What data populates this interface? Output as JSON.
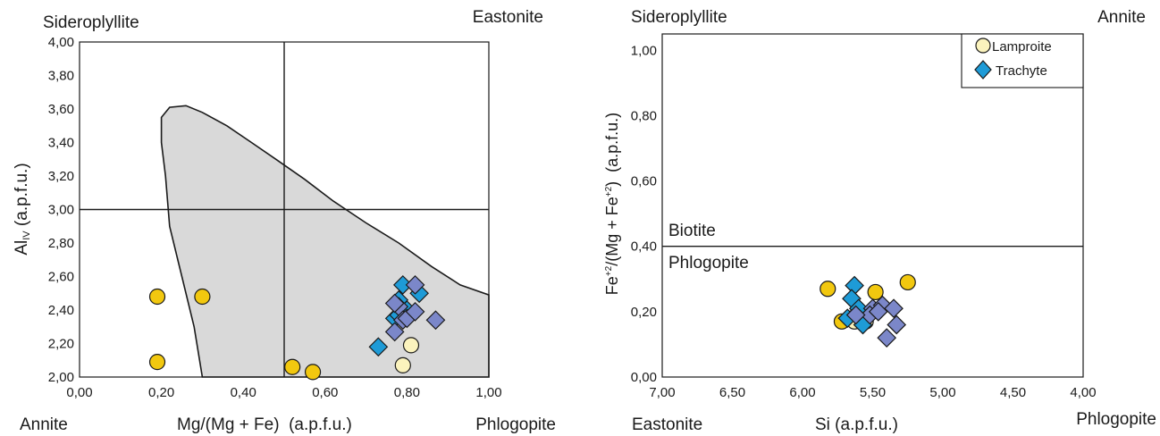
{
  "chart_data": [
    {
      "type": "scatter",
      "xlabel": "Mg/(Mg + Fe)  (a.p.f.u.)",
      "ylabel": {
        "main": "Al",
        "sub": "IV",
        "tail": " (a.p.f.u.)"
      },
      "xlim": [
        0,
        1
      ],
      "ylim": [
        2,
        4
      ],
      "xticks": [
        "0,00",
        "0,20",
        "0,40",
        "0,60",
        "0,80",
        "1,00"
      ],
      "xtick_values": [
        0,
        0.2,
        0.4,
        0.6,
        0.8,
        1.0
      ],
      "yticks": [
        "2,00",
        "2,20",
        "2,40",
        "2,60",
        "2,80",
        "3,00",
        "3,20",
        "3,40",
        "3,60",
        "3,80",
        "4,00"
      ],
      "ytick_values": [
        2.0,
        2.2,
        2.4,
        2.6,
        2.8,
        3.0,
        3.2,
        3.4,
        3.6,
        3.8,
        4.0
      ],
      "corner_labels": {
        "top_left": "Sideroplyllite",
        "top_right": "Eastonite",
        "bottom_left": "Annite",
        "bottom_right": "Phlogopite"
      },
      "divider_lines": {
        "vertical_x": 0.5,
        "horizontal_y": 3.0
      },
      "field_outline": [
        [
          0.3,
          2.0
        ],
        [
          0.28,
          2.3
        ],
        [
          0.25,
          2.6
        ],
        [
          0.22,
          2.9
        ],
        [
          0.21,
          3.2
        ],
        [
          0.2,
          3.4
        ],
        [
          0.2,
          3.55
        ],
        [
          0.22,
          3.61
        ],
        [
          0.26,
          3.62
        ],
        [
          0.3,
          3.58
        ],
        [
          0.36,
          3.5
        ],
        [
          0.42,
          3.4
        ],
        [
          0.48,
          3.3
        ],
        [
          0.55,
          3.18
        ],
        [
          0.62,
          3.05
        ],
        [
          0.7,
          2.92
        ],
        [
          0.78,
          2.8
        ],
        [
          0.86,
          2.66
        ],
        [
          0.93,
          2.55
        ],
        [
          1.0,
          2.49
        ],
        [
          1.0,
          2.0
        ]
      ],
      "series": [
        {
          "name": "Lamproite (yellow)",
          "marker": "circle",
          "color": "#f2c80f",
          "points": [
            [
              0.19,
              2.09
            ],
            [
              0.19,
              2.48
            ],
            [
              0.3,
              2.48
            ],
            [
              0.52,
              2.06
            ],
            [
              0.57,
              2.03
            ]
          ]
        },
        {
          "name": "Lamproite (pale)",
          "marker": "circle",
          "color": "#fbf3bd",
          "points": [
            [
              0.79,
              2.07
            ],
            [
              0.81,
              2.19
            ]
          ]
        },
        {
          "name": "Trachyte (blue)",
          "marker": "diamond",
          "color": "#1e9bd7",
          "points": [
            [
              0.73,
              2.18
            ],
            [
              0.77,
              2.35
            ],
            [
              0.78,
              2.46
            ],
            [
              0.79,
              2.55
            ],
            [
              0.8,
              2.4
            ],
            [
              0.83,
              2.5
            ],
            [
              0.78,
              2.37
            ]
          ]
        },
        {
          "name": "Trachyte (violet)",
          "marker": "diamond",
          "color": "#7b87c9",
          "points": [
            [
              0.77,
              2.27
            ],
            [
              0.78,
              2.42
            ],
            [
              0.79,
              2.34
            ],
            [
              0.8,
              2.35
            ],
            [
              0.82,
              2.39
            ],
            [
              0.82,
              2.55
            ],
            [
              0.87,
              2.34
            ],
            [
              0.77,
              2.44
            ]
          ]
        }
      ]
    },
    {
      "type": "scatter",
      "xlabel": "Si (a.p.f.u.)",
      "ylabel": {
        "main": "Fe",
        "sup1": "+2",
        "mid": "/(Mg + Fe",
        "sup2": "+2",
        "tail": ")  (a.p.f.u.)"
      },
      "xlim": [
        7,
        4
      ],
      "ylim": [
        0,
        1.05
      ],
      "xticks": [
        "7,00",
        "6,50",
        "6,00",
        "5,50",
        "5,00",
        "4,50",
        "4,00"
      ],
      "xtick_values": [
        7.0,
        6.5,
        6.0,
        5.5,
        5.0,
        4.5,
        4.0
      ],
      "yticks": [
        "0,00",
        "0,20",
        "0,40",
        "0,60",
        "0,80",
        "1,00"
      ],
      "ytick_values": [
        0,
        0.2,
        0.4,
        0.6,
        0.8,
        1.0
      ],
      "corner_labels": {
        "top_left": "Sideroplyllite",
        "top_right": "Annite",
        "bottom_left": "Eastonite",
        "bottom_right": "Phlogopite"
      },
      "field_labels": {
        "upper": "Biotite",
        "lower": "Phlogopite"
      },
      "divider_lines": {
        "horizontal_y": 0.4
      },
      "legend": {
        "position": "top-right",
        "entries": [
          "Lamproite",
          "Trachyte"
        ]
      },
      "series": [
        {
          "name": "Lamproite (yellow)",
          "marker": "circle",
          "color": "#f2c80f",
          "points": [
            [
              5.82,
              0.27
            ],
            [
              5.72,
              0.17
            ],
            [
              5.48,
              0.26
            ],
            [
              5.25,
              0.29
            ],
            [
              5.58,
              0.18
            ]
          ]
        },
        {
          "name": "Lamproite (pale)",
          "marker": "circle",
          "color": "#fbf3bd",
          "points": [
            [
              5.55,
              0.17
            ],
            [
              5.63,
              0.17
            ]
          ]
        },
        {
          "name": "Trachyte (blue)",
          "marker": "diamond",
          "color": "#1e9bd7",
          "points": [
            [
              5.63,
              0.28
            ],
            [
              5.65,
              0.24
            ],
            [
              5.6,
              0.2
            ],
            [
              5.57,
              0.16
            ],
            [
              5.68,
              0.18
            ],
            [
              5.6,
              0.21
            ]
          ]
        },
        {
          "name": "Trachyte (violet)",
          "marker": "diamond",
          "color": "#7b87c9",
          "points": [
            [
              5.5,
              0.21
            ],
            [
              5.43,
              0.22
            ],
            [
              5.35,
              0.21
            ],
            [
              5.33,
              0.16
            ],
            [
              5.4,
              0.12
            ],
            [
              5.52,
              0.19
            ],
            [
              5.62,
              0.19
            ],
            [
              5.46,
              0.2
            ]
          ]
        }
      ]
    }
  ]
}
